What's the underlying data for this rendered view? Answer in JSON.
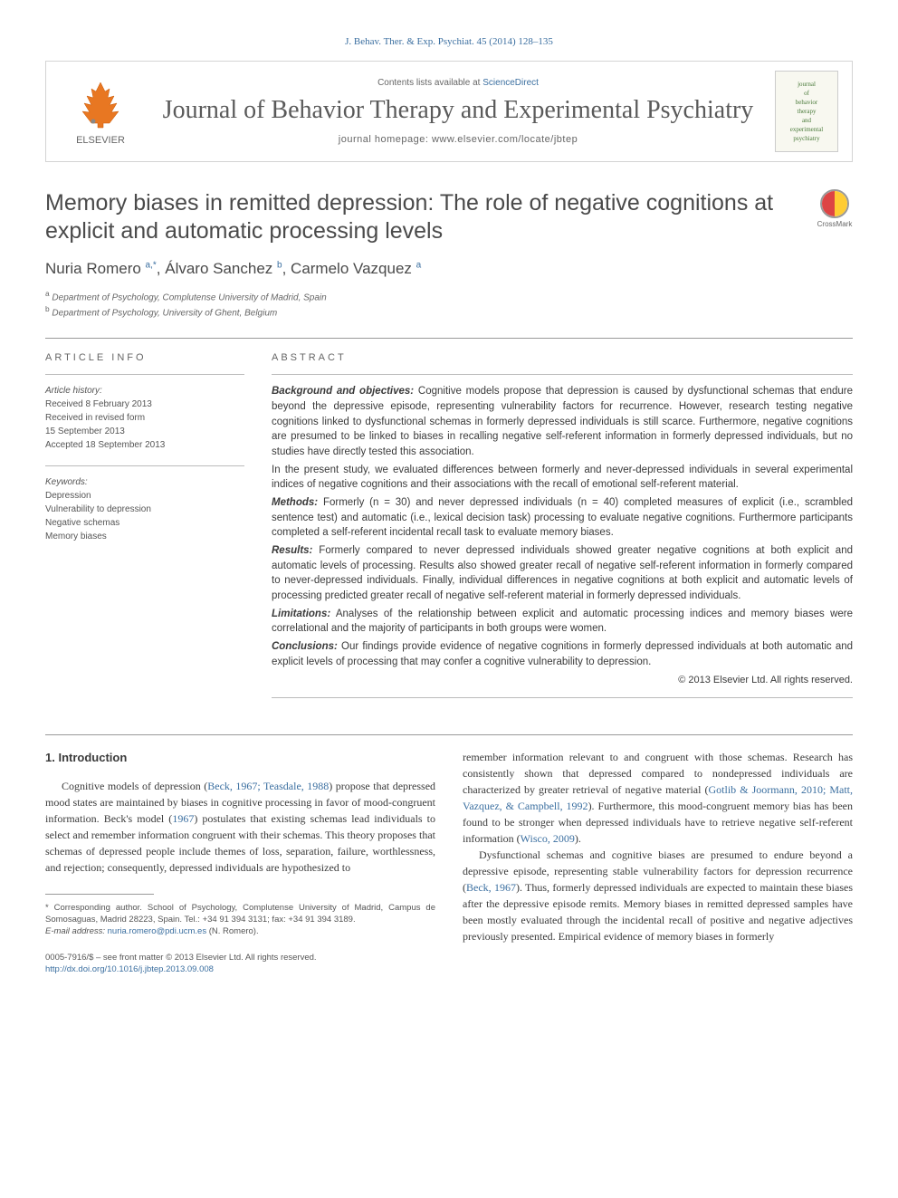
{
  "header": {
    "citation": "J. Behav. Ther. & Exp. Psychiat. 45 (2014) 128–135",
    "contents_available": "Contents lists available at ",
    "sciencedirect": "ScienceDirect",
    "journal": "Journal of Behavior Therapy and Experimental Psychiatry",
    "homepage_label": "journal homepage: ",
    "homepage_url": "www.elsevier.com/locate/jbtep",
    "publisher": "ELSEVIER",
    "cover_lines": [
      "journal",
      "of",
      "behavior",
      "therapy",
      "and",
      "experimental",
      "psychiatry"
    ]
  },
  "title": "Memory biases in remitted depression: The role of negative cognitions at explicit and automatic processing levels",
  "crossmark": "CrossMark",
  "authors_html": "Nuria Romero <sup>a,*</sup>, Álvaro Sanchez <sup>b</sup>, Carmelo Vazquez <sup>a</sup>",
  "affiliations": [
    {
      "sup": "a",
      "text": "Department of Psychology, Complutense University of Madrid, Spain"
    },
    {
      "sup": "b",
      "text": "Department of Psychology, University of Ghent, Belgium"
    }
  ],
  "article_info": {
    "heading": "ARTICLE INFO",
    "history_label": "Article history:",
    "history": [
      "Received 8 February 2013",
      "Received in revised form",
      "15 September 2013",
      "Accepted 18 September 2013"
    ],
    "keywords_label": "Keywords:",
    "keywords": [
      "Depression",
      "Vulnerability to depression",
      "Negative schemas",
      "Memory biases"
    ]
  },
  "abstract": {
    "heading": "ABSTRACT",
    "sections": [
      {
        "label": "Background and objectives:",
        "text": "Cognitive models propose that depression is caused by dysfunctional schemas that endure beyond the depressive episode, representing vulnerability factors for recurrence. However, research testing negative cognitions linked to dysfunctional schemas in formerly depressed individuals is still scarce. Furthermore, negative cognitions are presumed to be linked to biases in recalling negative self-referent information in formerly depressed individuals, but no studies have directly tested this association."
      },
      {
        "label": "",
        "text": "In the present study, we evaluated differences between formerly and never-depressed individuals in several experimental indices of negative cognitions and their associations with the recall of emotional self-referent material."
      },
      {
        "label": "Methods:",
        "text": "Formerly (n = 30) and never depressed individuals (n = 40) completed measures of explicit (i.e., scrambled sentence test) and automatic (i.e., lexical decision task) processing to evaluate negative cognitions. Furthermore participants completed a self-referent incidental recall task to evaluate memory biases."
      },
      {
        "label": "Results:",
        "text": "Formerly compared to never depressed individuals showed greater negative cognitions at both explicit and automatic levels of processing. Results also showed greater recall of negative self-referent information in formerly compared to never-depressed individuals. Finally, individual differences in negative cognitions at both explicit and automatic levels of processing predicted greater recall of negative self-referent material in formerly depressed individuals."
      },
      {
        "label": "Limitations:",
        "text": "Analyses of the relationship between explicit and automatic processing indices and memory biases were correlational and the majority of participants in both groups were women."
      },
      {
        "label": "Conclusions:",
        "text": "Our findings provide evidence of negative cognitions in formerly depressed individuals at both automatic and explicit levels of processing that may confer a cognitive vulnerability to depression."
      }
    ],
    "copyright": "© 2013 Elsevier Ltd. All rights reserved."
  },
  "body": {
    "intro_heading": "1. Introduction",
    "col1_p1_a": "Cognitive models of depression (",
    "col1_p1_link1": "Beck, 1967; Teasdale, 1988",
    "col1_p1_b": ") propose that depressed mood states are maintained by biases in cognitive processing in favor of mood-congruent information. Beck's model (",
    "col1_p1_link2": "1967",
    "col1_p1_c": ") postulates that existing schemas lead individuals to select and remember information congruent with their schemas. This theory proposes that schemas of depressed people include themes of loss, separation, failure, worthlessness, and rejection; consequently, depressed individuals are hypothesized to",
    "col2_p1_a": "remember information relevant to and congruent with those schemas. Research has consistently shown that depressed compared to nondepressed individuals are characterized by greater retrieval of negative material (",
    "col2_p1_link1": "Gotlib & Joormann, 2010; Matt, Vazquez, & Campbell, 1992",
    "col2_p1_b": "). Furthermore, this mood-congruent memory bias has been found to be stronger when depressed individuals have to retrieve negative self-referent information (",
    "col2_p1_link2": "Wisco, 2009",
    "col2_p1_c": ").",
    "col2_p2_a": "Dysfunctional schemas and cognitive biases are presumed to endure beyond a depressive episode, representing stable vulnerability factors for depression recurrence (",
    "col2_p2_link1": "Beck, 1967",
    "col2_p2_b": "). Thus, formerly depressed individuals are expected to maintain these biases after the depressive episode remits. Memory biases in remitted depressed samples have been mostly evaluated through the incidental recall of positive and negative adjectives previously presented. Empirical evidence of memory biases in formerly"
  },
  "footnote": {
    "corr": "* Corresponding author. School of Psychology, Complutense University of Madrid, Campus de Somosaguas, Madrid 28223, Spain. Tel.: +34 91 394 3131; fax: +34 91 394 3189.",
    "email_label": "E-mail address: ",
    "email": "nuria.romero@pdi.ucm.es",
    "email_name": " (N. Romero)."
  },
  "doi": {
    "line1": "0005-7916/$ – see front matter © 2013 Elsevier Ltd. All rights reserved.",
    "url": "http://dx.doi.org/10.1016/j.jbtep.2013.09.008"
  },
  "colors": {
    "link": "#3b6fa0",
    "text": "#3a3a3a",
    "heading": "#4a4a4a"
  }
}
